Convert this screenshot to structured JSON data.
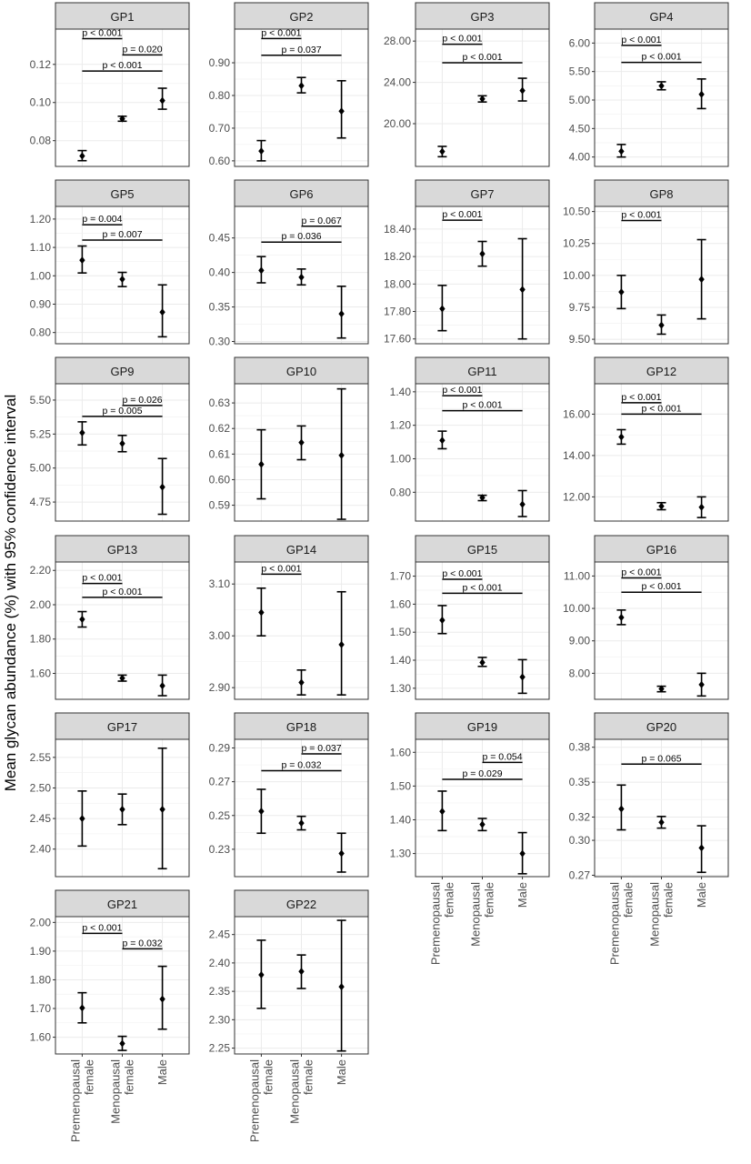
{
  "ylabel": "Mean glycan abundance (%) with 95% confidence interval",
  "groups": [
    "Premenopausal female",
    "Menopausal female",
    "Male"
  ],
  "x_tick_labels": [
    [
      "Premenopausal",
      "female"
    ],
    [
      "Menopausal",
      "female"
    ],
    [
      "Male"
    ]
  ],
  "chart_data": [
    {
      "type": "scatter",
      "title": "GP1",
      "categories": [
        "Premenopausal female",
        "Menopausal female",
        "Male"
      ],
      "yticks": [
        "0.08",
        "0.10",
        "0.12"
      ],
      "ylim": [
        0.0665,
        0.1385
      ],
      "series": [
        {
          "values": [
            0.072,
            0.0915,
            0.101
          ],
          "lower": [
            0.0695,
            0.0902,
            0.0965
          ],
          "upper": [
            0.0748,
            0.0928,
            0.1075
          ]
        }
      ],
      "brackets": [
        {
          "from": 0,
          "to": 1,
          "label": "p < 0.001",
          "y": 0.1335
        },
        {
          "from": 1,
          "to": 2,
          "label": "p = 0.020",
          "y": 0.125
        },
        {
          "from": 0,
          "to": 2,
          "label": "p < 0.001",
          "y": 0.1165
        }
      ]
    },
    {
      "type": "scatter",
      "title": "GP2",
      "categories": [
        "Premenopausal female",
        "Menopausal female",
        "Male"
      ],
      "yticks": [
        "0.60",
        "0.70",
        "0.80",
        "0.90"
      ],
      "ylim": [
        0.583,
        1.003
      ],
      "series": [
        {
          "values": [
            0.63,
            0.83,
            0.752
          ],
          "lower": [
            0.6,
            0.808,
            0.67
          ],
          "upper": [
            0.662,
            0.855,
            0.845
          ]
        }
      ],
      "brackets": [
        {
          "from": 0,
          "to": 1,
          "label": "p < 0.001",
          "y": 0.974
        },
        {
          "from": 0,
          "to": 2,
          "label": "p = 0.037",
          "y": 0.923
        }
      ]
    },
    {
      "type": "scatter",
      "title": "GP3",
      "categories": [
        "Premenopausal female",
        "Menopausal female",
        "Male"
      ],
      "yticks": [
        "20.00",
        "24.00",
        "28.00"
      ],
      "ylim": [
        15.86,
        29.16
      ],
      "series": [
        {
          "values": [
            17.3,
            22.4,
            23.2
          ],
          "lower": [
            16.8,
            22.1,
            22.2
          ],
          "upper": [
            17.8,
            22.7,
            24.4
          ]
        }
      ],
      "brackets": [
        {
          "from": 0,
          "to": 1,
          "label": "p < 0.001",
          "y": 27.7
        },
        {
          "from": 0,
          "to": 2,
          "label": "p < 0.001",
          "y": 25.9
        }
      ]
    },
    {
      "type": "scatter",
      "title": "GP4",
      "categories": [
        "Premenopausal female",
        "Menopausal female",
        "Male"
      ],
      "yticks": [
        "4.00",
        "4.50",
        "5.00",
        "5.50",
        "6.00"
      ],
      "ylim": [
        3.835,
        6.245
      ],
      "series": [
        {
          "values": [
            4.1,
            5.25,
            5.1
          ],
          "lower": [
            4.0,
            5.18,
            4.85
          ],
          "upper": [
            4.22,
            5.32,
            5.37
          ]
        }
      ],
      "brackets": [
        {
          "from": 0,
          "to": 1,
          "label": "p < 0.001",
          "y": 5.96
        },
        {
          "from": 0,
          "to": 2,
          "label": "p < 0.001",
          "y": 5.66
        }
      ]
    },
    {
      "type": "scatter",
      "title": "GP5",
      "categories": [
        "Premenopausal female",
        "Menopausal female",
        "Male"
      ],
      "yticks": [
        "0.80",
        "0.90",
        "1.00",
        "1.10",
        "1.20"
      ],
      "ylim": [
        0.7605,
        1.2445
      ],
      "series": [
        {
          "values": [
            1.055,
            0.988,
            0.872
          ],
          "lower": [
            1.01,
            0.962,
            0.785
          ],
          "upper": [
            1.105,
            1.012,
            0.968
          ]
        }
      ],
      "brackets": [
        {
          "from": 0,
          "to": 1,
          "label": "p = 0.004",
          "y": 1.18
        },
        {
          "from": 0,
          "to": 2,
          "label": "p = 0.007",
          "y": 1.126
        }
      ]
    },
    {
      "type": "scatter",
      "title": "GP6",
      "categories": [
        "Premenopausal female",
        "Menopausal female",
        "Male"
      ],
      "yticks": [
        "0.30",
        "0.35",
        "0.40",
        "0.45"
      ],
      "ylim": [
        0.2967,
        0.4957
      ],
      "series": [
        {
          "values": [
            0.403,
            0.393,
            0.34
          ],
          "lower": [
            0.385,
            0.382,
            0.305
          ],
          "upper": [
            0.423,
            0.405,
            0.38
          ]
        }
      ],
      "brackets": [
        {
          "from": 1,
          "to": 2,
          "label": "p = 0.067",
          "y": 0.467
        },
        {
          "from": 0,
          "to": 2,
          "label": "p = 0.036",
          "y": 0.444
        }
      ]
    },
    {
      "type": "scatter",
      "title": "GP7",
      "categories": [
        "Premenopausal female",
        "Menopausal female",
        "Male"
      ],
      "yticks": [
        "17.60",
        "17.80",
        "18.00",
        "18.20",
        "18.40"
      ],
      "ylim": [
        17.565,
        18.565
      ],
      "series": [
        {
          "values": [
            17.82,
            18.22,
            17.96
          ],
          "lower": [
            17.66,
            18.13,
            17.6
          ],
          "upper": [
            17.99,
            18.31,
            18.33
          ]
        }
      ],
      "brackets": [
        {
          "from": 0,
          "to": 1,
          "label": "p < 0.001",
          "y": 18.465
        }
      ]
    },
    {
      "type": "scatter",
      "title": "GP8",
      "categories": [
        "Premenopausal female",
        "Menopausal female",
        "Male"
      ],
      "yticks": [
        "9.50",
        "9.75",
        "10.00",
        "10.25",
        "10.50"
      ],
      "ylim": [
        9.465,
        10.54
      ],
      "series": [
        {
          "values": [
            9.87,
            9.61,
            9.97
          ],
          "lower": [
            9.74,
            9.54,
            9.66
          ],
          "upper": [
            10.0,
            9.69,
            10.28
          ]
        }
      ],
      "brackets": [
        {
          "from": 0,
          "to": 1,
          "label": "p < 0.001",
          "y": 10.43
        }
      ]
    },
    {
      "type": "scatter",
      "title": "GP9",
      "categories": [
        "Premenopausal female",
        "Menopausal female",
        "Male"
      ],
      "yticks": [
        "4.75",
        "5.00",
        "5.25",
        "5.50"
      ],
      "ylim": [
        4.61,
        5.62
      ],
      "series": [
        {
          "values": [
            5.26,
            5.18,
            4.86
          ],
          "lower": [
            5.17,
            5.12,
            4.66
          ],
          "upper": [
            5.34,
            5.24,
            5.07
          ]
        }
      ],
      "brackets": [
        {
          "from": 1,
          "to": 2,
          "label": "p = 0.026",
          "y": 5.46
        },
        {
          "from": 0,
          "to": 2,
          "label": "p = 0.005",
          "y": 5.38
        }
      ]
    },
    {
      "type": "scatter",
      "title": "GP10",
      "categories": [
        "Premenopausal female",
        "Menopausal female",
        "Male"
      ],
      "yticks": [
        "0.59",
        "0.60",
        "0.61",
        "0.62",
        "0.63"
      ],
      "ylim": [
        0.5838,
        0.6375
      ],
      "series": [
        {
          "values": [
            0.606,
            0.6145,
            0.6095
          ],
          "lower": [
            0.5925,
            0.6078,
            0.5845
          ],
          "upper": [
            0.6195,
            0.621,
            0.6355
          ]
        }
      ],
      "brackets": []
    },
    {
      "type": "scatter",
      "title": "GP11",
      "categories": [
        "Premenopausal female",
        "Menopausal female",
        "Male"
      ],
      "yticks": [
        "0.80",
        "1.00",
        "1.20",
        "1.40"
      ],
      "ylim": [
        0.628,
        1.448
      ],
      "series": [
        {
          "values": [
            1.11,
            0.768,
            0.728
          ],
          "lower": [
            1.06,
            0.75,
            0.655
          ],
          "upper": [
            1.165,
            0.782,
            0.81
          ]
        }
      ],
      "brackets": [
        {
          "from": 0,
          "to": 1,
          "label": "p < 0.001",
          "y": 1.377
        },
        {
          "from": 0,
          "to": 2,
          "label": "p < 0.001",
          "y": 1.287
        }
      ]
    },
    {
      "type": "scatter",
      "title": "GP12",
      "categories": [
        "Premenopausal female",
        "Menopausal female",
        "Male"
      ],
      "yticks": [
        "12.00",
        "14.00",
        "16.00"
      ],
      "ylim": [
        10.83,
        17.47
      ],
      "series": [
        {
          "values": [
            14.9,
            11.55,
            11.5
          ],
          "lower": [
            14.55,
            11.38,
            11.0
          ],
          "upper": [
            15.25,
            11.72,
            12.0
          ]
        }
      ],
      "brackets": [
        {
          "from": 0,
          "to": 1,
          "label": "p < 0.001",
          "y": 16.55
        },
        {
          "from": 0,
          "to": 2,
          "label": "p < 0.001",
          "y": 16.0
        }
      ]
    },
    {
      "type": "scatter",
      "title": "GP13",
      "categories": [
        "Premenopausal female",
        "Menopausal female",
        "Male"
      ],
      "yticks": [
        "1.60",
        "1.80",
        "2.00",
        "2.20"
      ],
      "ylim": [
        1.449,
        2.249
      ],
      "series": [
        {
          "values": [
            1.915,
            1.572,
            1.528
          ],
          "lower": [
            1.87,
            1.555,
            1.47
          ],
          "upper": [
            1.96,
            1.59,
            1.59
          ]
        }
      ],
      "brackets": [
        {
          "from": 0,
          "to": 1,
          "label": "p < 0.001",
          "y": 2.124
        },
        {
          "from": 0,
          "to": 2,
          "label": "p < 0.001",
          "y": 2.043
        }
      ]
    },
    {
      "type": "scatter",
      "title": "GP14",
      "categories": [
        "Premenopausal female",
        "Menopausal female",
        "Male"
      ],
      "yticks": [
        "2.90",
        "3.00",
        "3.10"
      ],
      "ylim": [
        2.8775,
        3.1425
      ],
      "series": [
        {
          "values": [
            3.045,
            2.91,
            2.983
          ],
          "lower": [
            3.0,
            2.886,
            2.886
          ],
          "upper": [
            3.092,
            2.934,
            3.085
          ]
        }
      ],
      "brackets": [
        {
          "from": 0,
          "to": 1,
          "label": "p < 0.001",
          "y": 3.119
        }
      ]
    },
    {
      "type": "scatter",
      "title": "GP15",
      "categories": [
        "Premenopausal female",
        "Menopausal female",
        "Male"
      ],
      "yticks": [
        "1.30",
        "1.40",
        "1.50",
        "1.60",
        "1.70"
      ],
      "ylim": [
        1.2605,
        1.7505
      ],
      "series": [
        {
          "values": [
            1.543,
            1.392,
            1.34
          ],
          "lower": [
            1.495,
            1.378,
            1.282
          ],
          "upper": [
            1.595,
            1.41,
            1.402
          ]
        }
      ],
      "brackets": [
        {
          "from": 0,
          "to": 1,
          "label": "p < 0.001",
          "y": 1.689
        },
        {
          "from": 0,
          "to": 2,
          "label": "p < 0.001",
          "y": 1.639
        }
      ]
    },
    {
      "type": "scatter",
      "title": "GP16",
      "categories": [
        "Premenopausal female",
        "Menopausal female",
        "Male"
      ],
      "yticks": [
        "8.00",
        "9.00",
        "10.00",
        "11.00"
      ],
      "ylim": [
        7.197,
        11.432
      ],
      "series": [
        {
          "values": [
            9.72,
            7.52,
            7.65
          ],
          "lower": [
            9.5,
            7.43,
            7.3
          ],
          "upper": [
            9.95,
            7.6,
            8.0
          ]
        }
      ],
      "brackets": [
        {
          "from": 0,
          "to": 1,
          "label": "p < 0.001",
          "y": 10.94
        },
        {
          "from": 0,
          "to": 2,
          "label": "p < 0.001",
          "y": 10.5
        }
      ]
    },
    {
      "type": "scatter",
      "title": "GP17",
      "categories": [
        "Premenopausal female",
        "Menopausal female",
        "Male"
      ],
      "yticks": [
        "2.40",
        "2.45",
        "2.50",
        "2.55"
      ],
      "ylim": [
        2.355,
        2.5795
      ],
      "series": [
        {
          "values": [
            2.45,
            2.465,
            2.465
          ],
          "lower": [
            2.405,
            2.44,
            2.368
          ],
          "upper": [
            2.495,
            2.49,
            2.565
          ]
        }
      ],
      "brackets": []
    },
    {
      "type": "scatter",
      "title": "GP18",
      "categories": [
        "Premenopausal female",
        "Menopausal female",
        "Male"
      ],
      "yticks": [
        "0.23",
        "0.25",
        "0.27",
        "0.29"
      ],
      "ylim": [
        0.2138,
        0.2951
      ],
      "series": [
        {
          "values": [
            0.2525,
            0.2455,
            0.2275
          ],
          "lower": [
            0.2395,
            0.2415,
            0.2165
          ],
          "upper": [
            0.2655,
            0.2495,
            0.2395
          ]
        }
      ],
      "brackets": [
        {
          "from": 1,
          "to": 2,
          "label": "p = 0.037",
          "y": 0.2865
        },
        {
          "from": 0,
          "to": 2,
          "label": "p = 0.032",
          "y": 0.2765
        }
      ]
    },
    {
      "type": "scatter",
      "title": "GP19",
      "categories": [
        "Premenopausal female",
        "Menopausal female",
        "Male"
      ],
      "yticks": [
        "1.30",
        "1.40",
        "1.50",
        "1.60"
      ],
      "ylim": [
        1.2315,
        1.6385
      ],
      "series": [
        {
          "values": [
            1.425,
            1.386,
            1.3
          ],
          "lower": [
            1.368,
            1.368,
            1.24
          ],
          "upper": [
            1.485,
            1.404,
            1.362
          ]
        }
      ],
      "brackets": [
        {
          "from": 1,
          "to": 2,
          "label": "p = 0.054",
          "y": 1.57
        },
        {
          "from": 0,
          "to": 2,
          "label": "p = 0.029",
          "y": 1.52
        }
      ]
    },
    {
      "type": "scatter",
      "title": "GP20",
      "categories": [
        "Premenopausal female",
        "Menopausal female",
        "Male"
      ],
      "yticks": [
        "0.27",
        "0.30",
        "0.32",
        "0.35",
        "0.38"
      ],
      "ylim": [
        0.2688,
        0.3868
      ],
      "series": [
        {
          "values": [
            0.327,
            0.3155,
            0.2935
          ],
          "lower": [
            0.309,
            0.3105,
            0.2725
          ],
          "upper": [
            0.3475,
            0.3205,
            0.3125
          ]
        }
      ],
      "brackets": [
        {
          "from": 0,
          "to": 2,
          "label": "p = 0.065",
          "y": 0.3655
        }
      ]
    },
    {
      "type": "scatter",
      "title": "GP21",
      "categories": [
        "Premenopausal female",
        "Menopausal female",
        "Male"
      ],
      "yticks": [
        "1.60",
        "1.70",
        "1.80",
        "1.90",
        "2.00"
      ],
      "ylim": [
        1.5416,
        2.0201
      ],
      "series": [
        {
          "values": [
            1.702,
            1.578,
            1.733
          ],
          "lower": [
            1.65,
            1.554,
            1.628
          ],
          "upper": [
            1.755,
            1.603,
            1.847
          ]
        }
      ],
      "brackets": [
        {
          "from": 0,
          "to": 1,
          "label": "p < 0.001",
          "y": 1.962
        },
        {
          "from": 1,
          "to": 2,
          "label": "p = 0.032",
          "y": 1.908
        }
      ]
    },
    {
      "type": "scatter",
      "title": "GP22",
      "categories": [
        "Premenopausal female",
        "Menopausal female",
        "Male"
      ],
      "yticks": [
        "2.25",
        "2.30",
        "2.35",
        "2.40",
        "2.45"
      ],
      "ylim": [
        2.2397,
        2.4815
      ],
      "series": [
        {
          "values": [
            2.379,
            2.385,
            2.358
          ],
          "lower": [
            2.32,
            2.355,
            2.245
          ],
          "upper": [
            2.44,
            2.414,
            2.475
          ]
        }
      ],
      "brackets": []
    }
  ]
}
